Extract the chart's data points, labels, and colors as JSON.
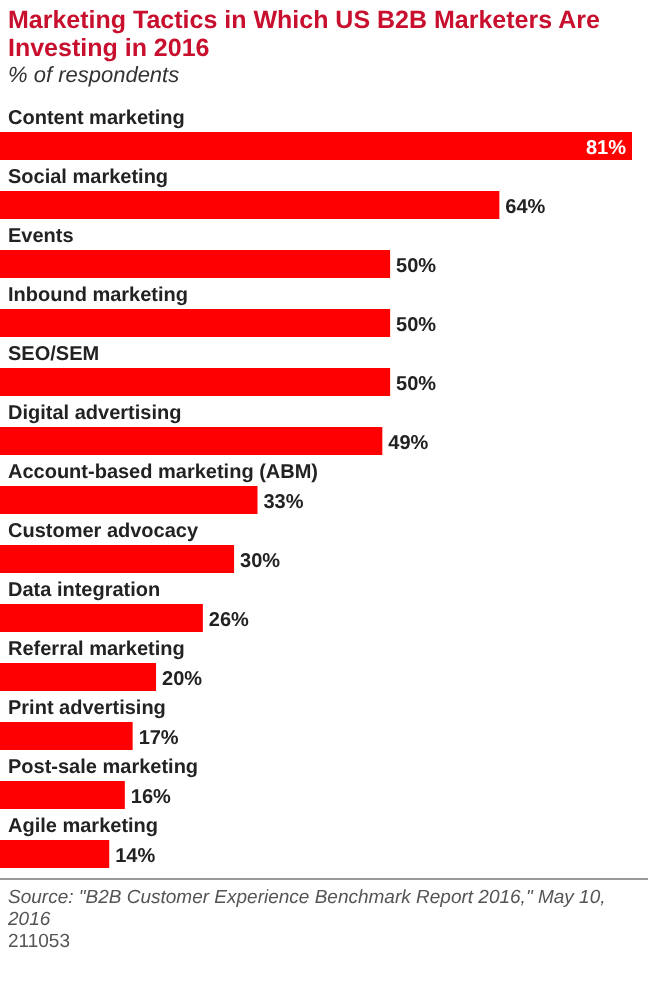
{
  "chart_data": {
    "type": "bar",
    "orientation": "horizontal",
    "title": "Marketing Tactics in Which US B2B Marketers Are Investing in 2016",
    "subtitle": "% of respondents",
    "categories": [
      "Content marketing",
      "Social marketing",
      "Events",
      "Inbound marketing",
      "SEO/SEM",
      "Digital advertising",
      "Account-based marketing (ABM)",
      "Customer advocacy",
      "Data integration",
      "Referral marketing",
      "Print advertising",
      "Post-sale marketing",
      "Agile marketing"
    ],
    "values": [
      81,
      64,
      50,
      50,
      50,
      49,
      33,
      30,
      26,
      20,
      17,
      16,
      14
    ],
    "value_labels": [
      "81%",
      "64%",
      "50%",
      "50%",
      "50%",
      "49%",
      "33%",
      "30%",
      "26%",
      "20%",
      "17%",
      "16%",
      "14%"
    ],
    "color": "#ff0000",
    "annotations": [
      "Source: \"B2B Customer Experience Benchmark Report 2016,\" May 10, 2016",
      "211053"
    ]
  }
}
